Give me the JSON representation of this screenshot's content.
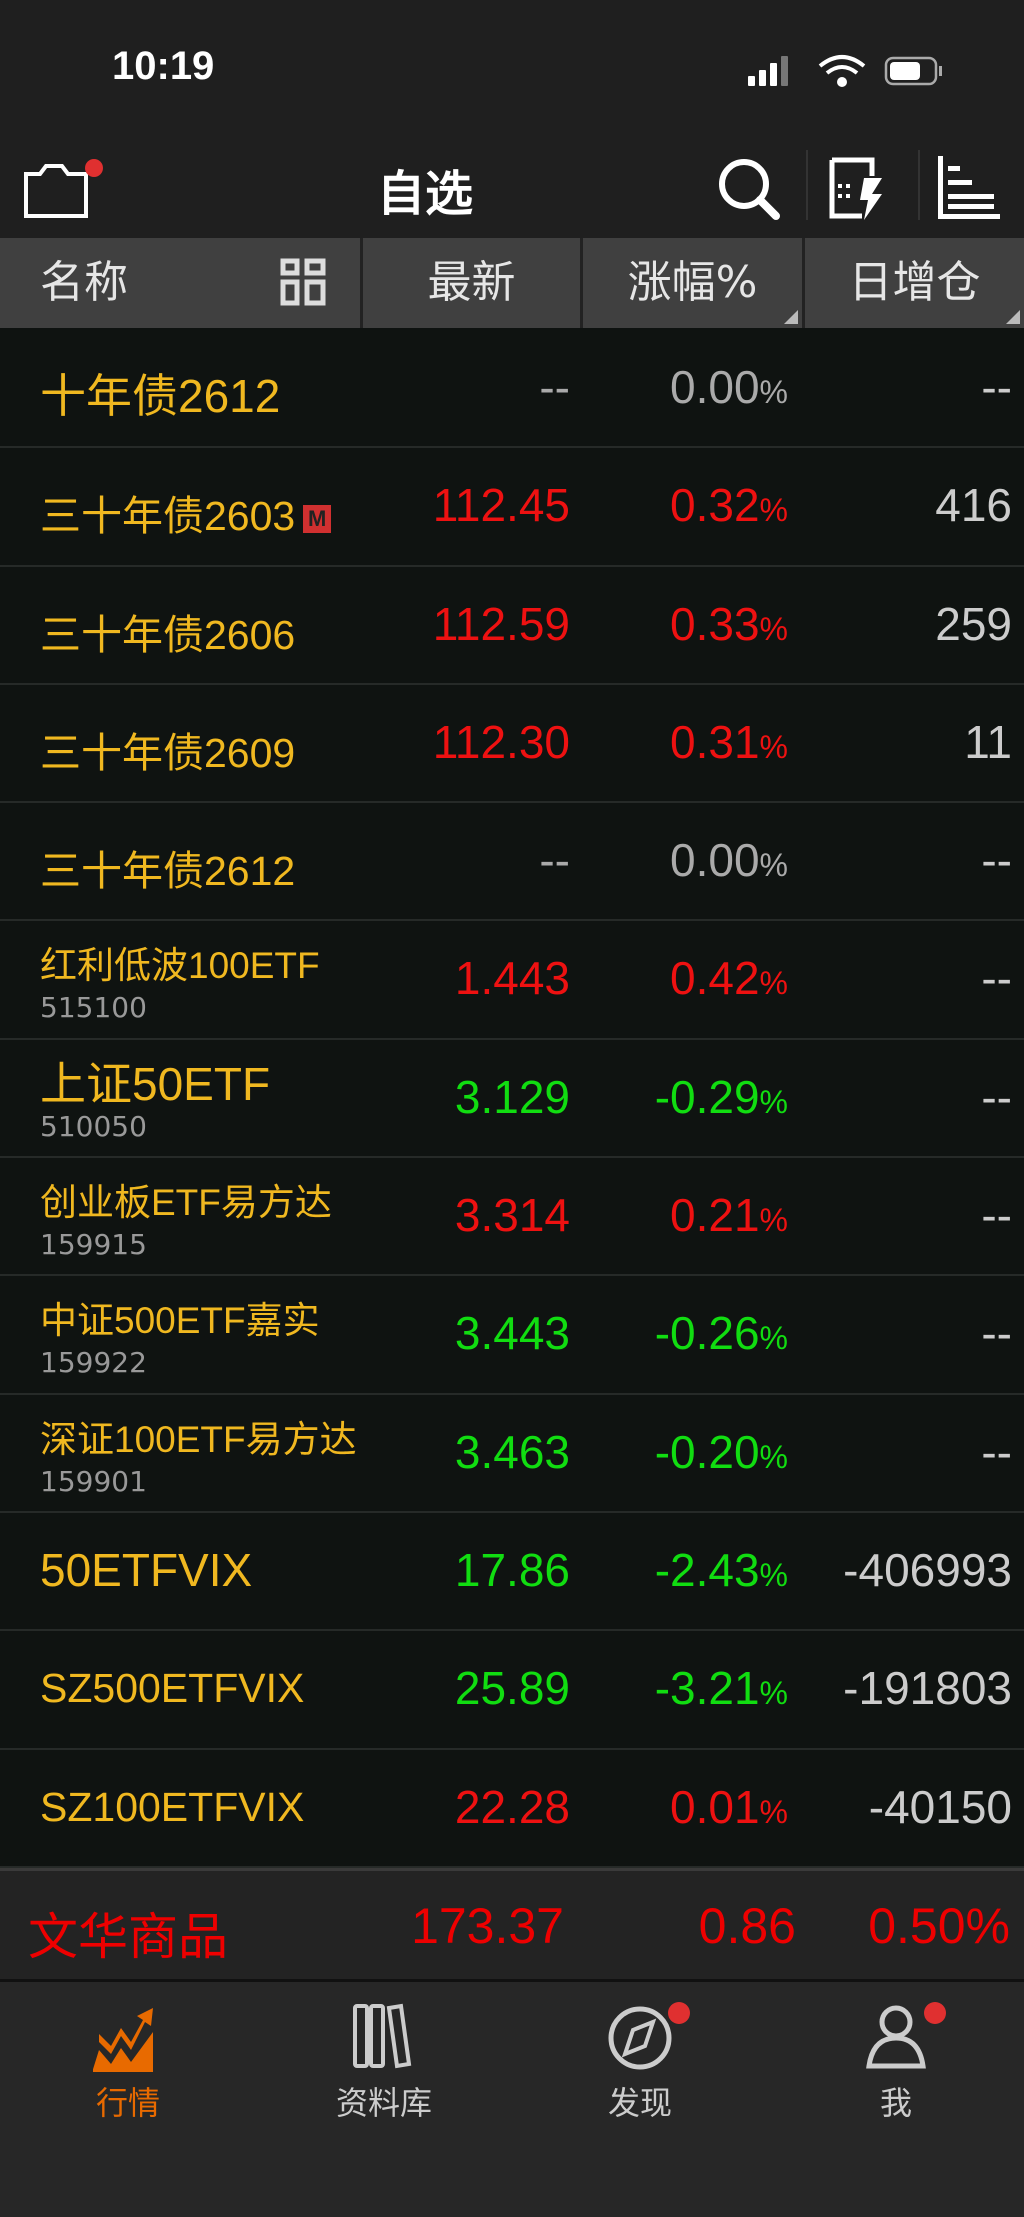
{
  "status_bar": {
    "time": "10:19"
  },
  "header": {
    "title": "自选",
    "icons": [
      "folder-icon",
      "search-icon",
      "quick-order-icon",
      "sort-list-icon"
    ]
  },
  "columns": [
    "名称",
    "最新",
    "涨幅%",
    "日增仓"
  ],
  "rows": [
    {
      "name": "十年债2612",
      "code": "",
      "last": "--",
      "change": "0.00",
      "oi": "--",
      "trend": "flat",
      "big": true
    },
    {
      "name": "三十年债2603",
      "code": "",
      "last": "112.45",
      "change": "0.32",
      "oi": "416",
      "trend": "up",
      "badge": "M"
    },
    {
      "name": "三十年债2606",
      "code": "",
      "last": "112.59",
      "change": "0.33",
      "oi": "259",
      "trend": "up"
    },
    {
      "name": "三十年债2609",
      "code": "",
      "last": "112.30",
      "change": "0.31",
      "oi": "11",
      "trend": "up"
    },
    {
      "name": "三十年债2612",
      "code": "",
      "last": "--",
      "change": "0.00",
      "oi": "--",
      "trend": "flat"
    },
    {
      "name": "红利低波100ETF",
      "code": "515100",
      "last": "1.443",
      "change": "0.42",
      "oi": "--",
      "trend": "up"
    },
    {
      "name": "上证50ETF",
      "code": "510050",
      "last": "3.129",
      "change": "-0.29",
      "oi": "--",
      "trend": "down",
      "big": true
    },
    {
      "name": "创业板ETF易方达",
      "code": "159915",
      "last": "3.314",
      "change": "0.21",
      "oi": "--",
      "trend": "up"
    },
    {
      "name": "中证500ETF嘉实",
      "code": "159922",
      "last": "3.443",
      "change": "-0.26",
      "oi": "--",
      "trend": "down"
    },
    {
      "name": "深证100ETF易方达",
      "code": "159901",
      "last": "3.463",
      "change": "-0.20",
      "oi": "--",
      "trend": "down"
    },
    {
      "name": "50ETFVIX",
      "code": "",
      "last": "17.86",
      "change": "-2.43",
      "oi": "-406993",
      "trend": "down",
      "big": true
    },
    {
      "name": "SZ500ETFVIX",
      "code": "",
      "last": "25.89",
      "change": "-3.21",
      "oi": "-191803",
      "trend": "down"
    },
    {
      "name": "SZ100ETFVIX",
      "code": "",
      "last": "22.28",
      "change": "0.01",
      "oi": "-40150",
      "trend": "up"
    }
  ],
  "pct_symbol": "%",
  "ticker": {
    "name": "文华商品",
    "last": "173.37",
    "change": "0.86",
    "pct": "0.50%"
  },
  "tabs": [
    {
      "label": "行情",
      "active": true
    },
    {
      "label": "资料库"
    },
    {
      "label": "发现",
      "dot": true
    },
    {
      "label": "我",
      "dot": true
    }
  ],
  "colors": {
    "up": "#ee1111",
    "down": "#11dd11",
    "name": "#f0b820",
    "accent": "#e86a00"
  }
}
